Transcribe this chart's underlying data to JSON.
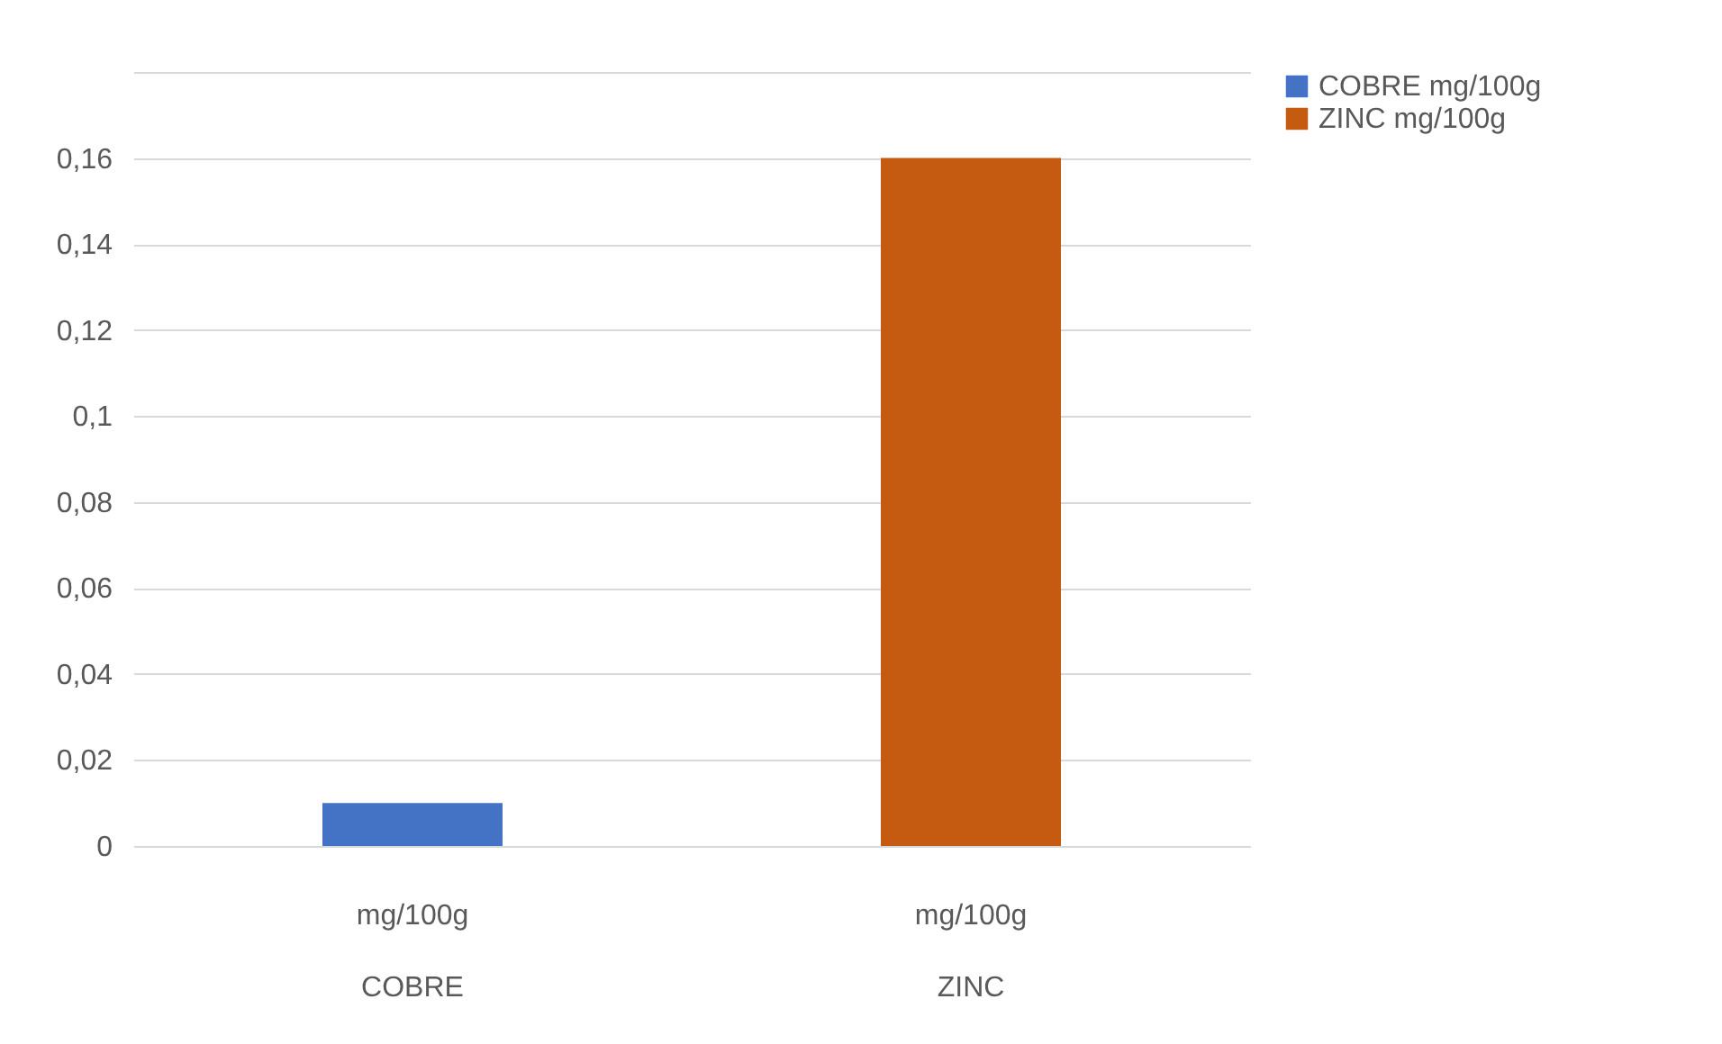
{
  "chart_data": {
    "type": "bar",
    "categories": [
      "mg/100g\nCOBRE",
      "mg/100g\nZINC"
    ],
    "series": [
      {
        "name": "COBRE mg/100g",
        "color": "#4472c4",
        "values": [
          0.01,
          null
        ]
      },
      {
        "name": "ZINC mg/100g",
        "color": "#c55a11",
        "values": [
          null,
          0.16
        ]
      }
    ],
    "ylim": [
      0,
      0.18
    ],
    "yticks": [
      0,
      {
        "value": 0.02,
        "label": "0,02"
      },
      {
        "value": 0.04,
        "label": "0,04"
      },
      {
        "value": 0.06,
        "label": "0,06"
      },
      {
        "value": 0.08,
        "label": "0,08"
      },
      {
        "value": 0.1,
        "label": "0,1"
      },
      {
        "value": 0.12,
        "label": "0,12"
      },
      {
        "value": 0.14,
        "label": "0,14"
      },
      {
        "value": 0.16,
        "label": "0,16"
      },
      {
        "value": 0.18,
        "label": null
      }
    ],
    "grid": "y",
    "legend": "right"
  }
}
